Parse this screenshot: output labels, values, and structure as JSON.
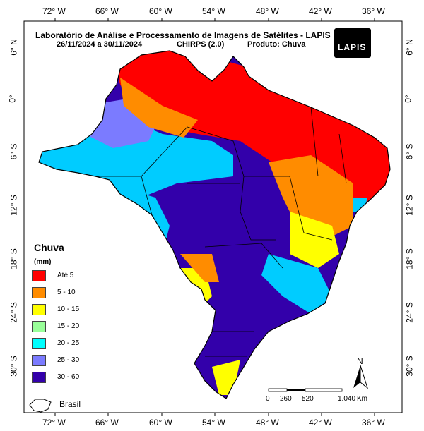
{
  "title": {
    "line1": "Laboratório de Análise e Processamento de Imagens de Satélites - LAPIS",
    "dates": "26/11/2024  a 30/11/2024",
    "source": "CHIRPS (2.0)",
    "product": "Produto: Chuva"
  },
  "logo_text": "LAPIS",
  "longitude_labels": [
    "72° W",
    "66° W",
    "60° W",
    "54° W",
    "48° W",
    "42° W",
    "36° W"
  ],
  "latitude_labels": [
    "6° N",
    "0°",
    "6° S",
    "12° S",
    "18° S",
    "24° S",
    "30° S"
  ],
  "legend": {
    "title": "Chuva",
    "unit": "(mm)",
    "items": [
      {
        "label": "Até 5",
        "color": "#ff0000"
      },
      {
        "label": "5 - 10",
        "color": "#ff8c00"
      },
      {
        "label": "10 - 15",
        "color": "#ffff00"
      },
      {
        "label": "15 - 20",
        "color": "#99ff99"
      },
      {
        "label": "20 - 25",
        "color": "#00ffff"
      },
      {
        "label": "25 - 30",
        "color": "#7b7bff"
      },
      {
        "label": "30 - 60",
        "color": "#3300aa"
      }
    ]
  },
  "inset_label": "Brasil",
  "scale_bar": {
    "ticks": [
      "0",
      "260",
      "520",
      "1.040"
    ],
    "unit": "Km"
  },
  "north_arrow": "N"
}
